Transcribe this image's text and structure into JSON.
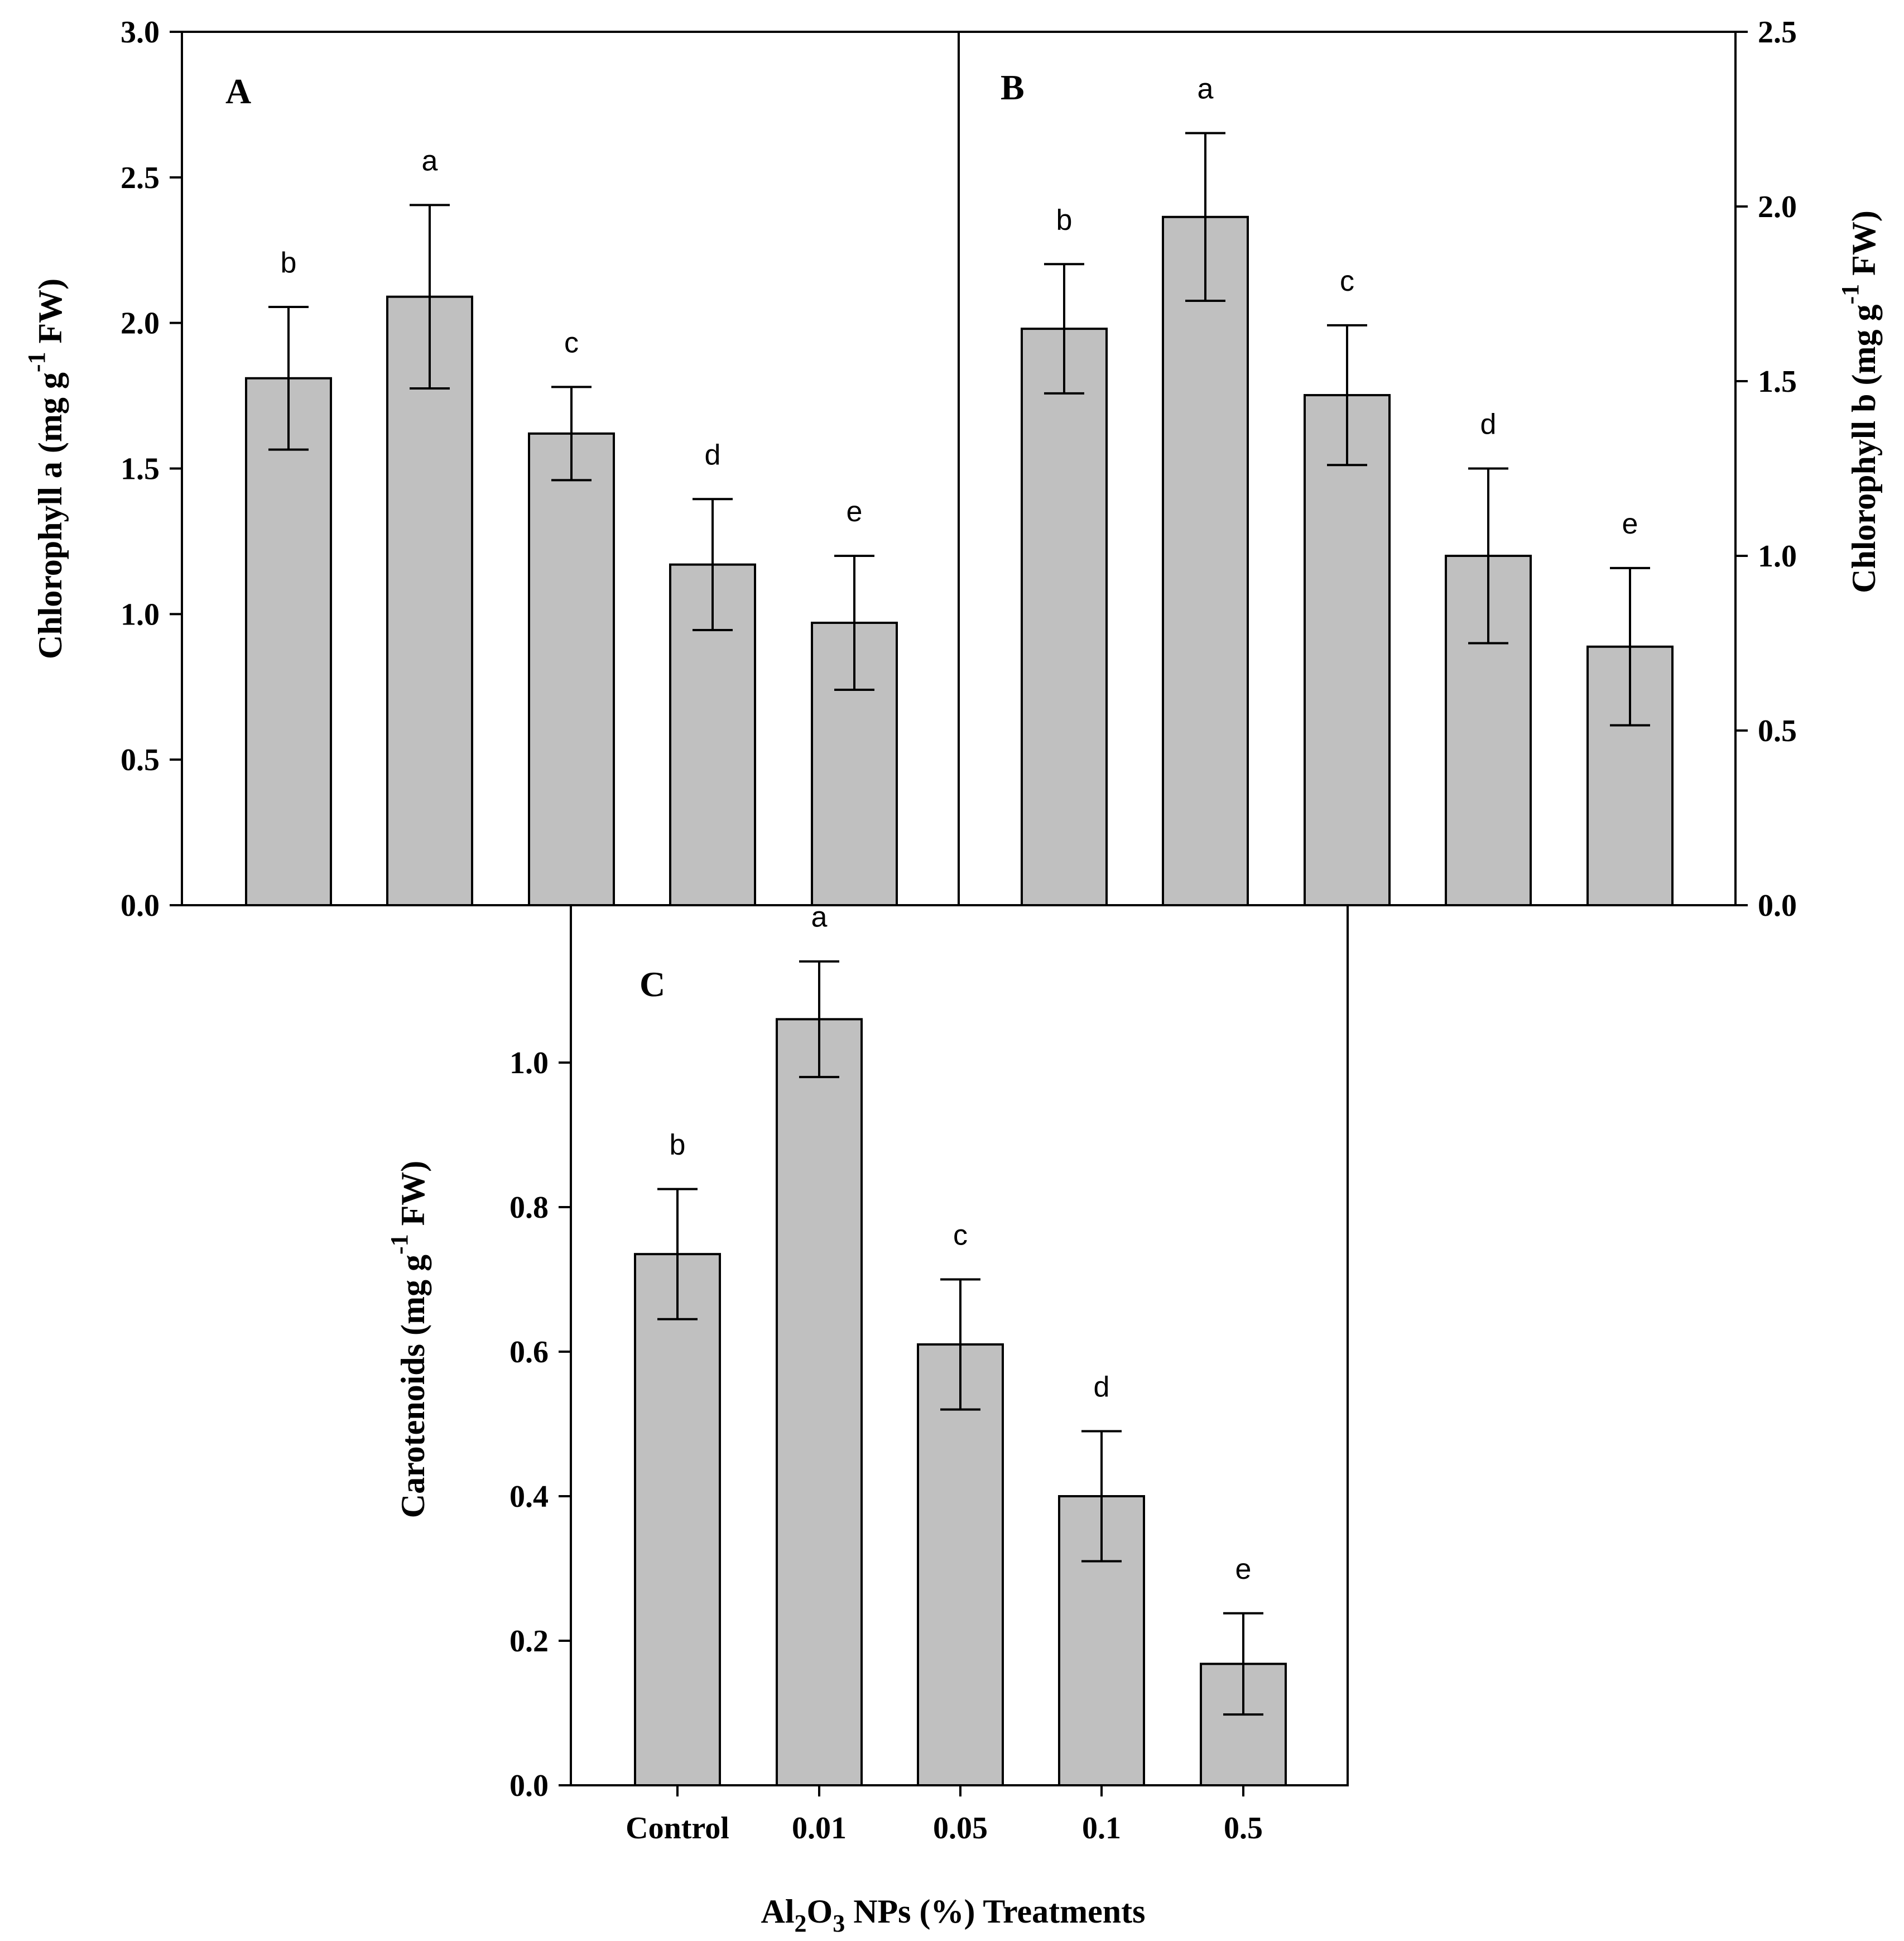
{
  "chart_data": [
    {
      "id": "A",
      "type": "bar",
      "panel_label": "A",
      "categories": [
        "Control",
        "0.01",
        "0.05",
        "0.1",
        "0.5"
      ],
      "values": [
        1.81,
        2.09,
        1.62,
        1.17,
        0.97
      ],
      "errors": [
        0.245,
        0.315,
        0.16,
        0.225,
        0.23
      ],
      "significance": [
        "b",
        "a",
        "c",
        "d",
        "e"
      ],
      "ylabel": {
        "main": "Chlorophyll a (mg g",
        "sup": "-1",
        "tail": " FW)"
      },
      "ylim": [
        0,
        3.0
      ],
      "yticks": [
        "0.0",
        "0.5",
        "1.0",
        "1.5",
        "2.0",
        "2.5",
        "3.0"
      ],
      "axis_side": "left"
    },
    {
      "id": "B",
      "type": "bar",
      "panel_label": "B",
      "categories": [
        "Control",
        "0.01",
        "0.05",
        "0.1",
        "0.5"
      ],
      "values": [
        1.65,
        1.97,
        1.46,
        1.0,
        0.74
      ],
      "errors": [
        0.185,
        0.24,
        0.2,
        0.25,
        0.225
      ],
      "significance": [
        "b",
        "a",
        "c",
        "d",
        "e"
      ],
      "ylabel": {
        "main": "Chlorophyll b (mg g",
        "sup": "-1",
        "tail": " FW)"
      },
      "ylim": [
        0,
        2.5
      ],
      "yticks": [
        "0.0",
        "0.5",
        "1.0",
        "1.5",
        "2.0",
        "2.5"
      ],
      "axis_side": "right"
    },
    {
      "id": "C",
      "type": "bar",
      "panel_label": "C",
      "categories": [
        "Control",
        "0.01",
        "0.05",
        "0.1",
        "0.5"
      ],
      "values": [
        0.735,
        1.06,
        0.61,
        0.4,
        0.168
      ],
      "errors": [
        0.09,
        0.08,
        0.09,
        0.09,
        0.07
      ],
      "significance": [
        "b",
        "a",
        "c",
        "d",
        "e"
      ],
      "ylabel": {
        "main": "Carotenoids (mg g",
        "sup": "-1",
        "tail": " FW)"
      },
      "ylim": [
        0,
        1.2
      ],
      "yticks": [
        "0.0",
        "0.2",
        "0.4",
        "0.6",
        "0.8",
        "1.0"
      ],
      "xlabel": {
        "pre": "Al",
        "sub1": "2",
        "mid": "O",
        "sub2": "3",
        "post": " NPs (%) Treatments"
      },
      "axis_side": "left"
    }
  ]
}
